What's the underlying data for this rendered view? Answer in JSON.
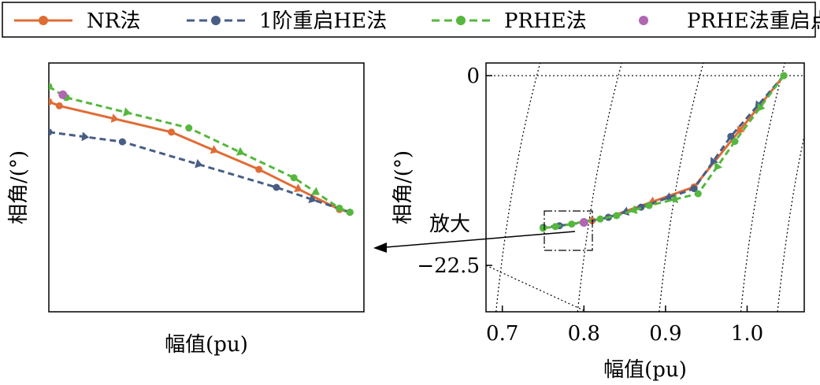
{
  "chart_data": {
    "type": "line",
    "legend": {
      "placement": "top",
      "entries": [
        {
          "name": "NR法",
          "color": "#e06c35",
          "style": "solid",
          "marker": "circle"
        },
        {
          "name": "1阶重启HE法",
          "color": "#485e86",
          "style": "dashed",
          "marker": "circle"
        },
        {
          "name": "PRHE法",
          "color": "#55b73d",
          "style": "dashed",
          "marker": "circle"
        },
        {
          "name": "PRHE法重启点",
          "color": "#b066b0",
          "style": "none",
          "marker": "circle"
        }
      ]
    },
    "main": {
      "xlabel": "幅值(pu)",
      "ylabel": "相角/(°)",
      "xlim": [
        0.68,
        1.07
      ],
      "ylim": [
        -28,
        1.5
      ],
      "xticks": [
        "0.7",
        "0.8",
        "0.9",
        "1.0"
      ],
      "xtick_values": [
        0.7,
        0.8,
        0.9,
        1.0
      ],
      "yticks": [
        "0",
        "−22.5"
      ],
      "ytick_values": [
        0,
        -22.5
      ],
      "series": [
        {
          "name": "NR法",
          "color": "#e06c35",
          "dash": "",
          "x": [
            1.045,
            0.935,
            0.83,
            0.81
          ],
          "y": [
            0,
            -13.2,
            -16.8,
            -17.2
          ]
        },
        {
          "name": "1阶重启HE法",
          "color": "#485e86",
          "dash": "8,5",
          "x": [
            1.045,
            0.98,
            0.935,
            0.87,
            0.83,
            0.8,
            0.77,
            0.75
          ],
          "y": [
            0,
            -7.2,
            -13.4,
            -15.6,
            -16.8,
            -17.4,
            -17.8,
            -18.0
          ]
        },
        {
          "name": "PRHE法",
          "color": "#55b73d",
          "dash": "8,5",
          "x": [
            1.045,
            0.985,
            0.94,
            0.88,
            0.84,
            0.82,
            0.8,
            0.785,
            0.765,
            0.75
          ],
          "y": [
            0,
            -7.8,
            -14.0,
            -15.4,
            -16.6,
            -17.0,
            -17.3,
            -17.6,
            -17.9,
            -18.1
          ]
        },
        {
          "name": "PRHE法重启点",
          "color": "#b066b0",
          "dash": "none",
          "x": [
            0.8
          ],
          "y": [
            -17.4
          ]
        }
      ],
      "annotation": "放大"
    },
    "inset": {
      "xlabel": "幅值(pu)",
      "ylabel": "相角/(°)",
      "note": "zoomed view of the dashed rectangle region",
      "xlim": [
        0.745,
        0.835
      ],
      "ylim": [
        -18.35,
        -16.55
      ],
      "series": [
        {
          "name": "NR法",
          "color": "#e06c35",
          "dash": "",
          "x": [
            0.835,
            0.832,
            0.8,
            0.775,
            0.752,
            0.749
          ],
          "y": [
            -16.83,
            -16.86,
            -17.05,
            -17.32,
            -17.61,
            -17.63
          ]
        },
        {
          "name": "1阶重启HE法",
          "color": "#485e86",
          "dash": "8,5",
          "x": [
            0.835,
            0.814,
            0.77,
            0.749
          ],
          "y": [
            -17.05,
            -17.12,
            -17.45,
            -17.63
          ]
        },
        {
          "name": "PRHE法",
          "color": "#55b73d",
          "dash": "8,5",
          "x": [
            0.835,
            0.83,
            0.795,
            0.765,
            0.752,
            0.749
          ],
          "y": [
            -16.72,
            -16.8,
            -17.02,
            -17.38,
            -17.6,
            -17.63
          ]
        },
        {
          "name": "PRHE法重启点",
          "color": "#b066b0",
          "dash": "none",
          "x": [
            0.831
          ],
          "y": [
            -16.78
          ]
        }
      ]
    }
  }
}
